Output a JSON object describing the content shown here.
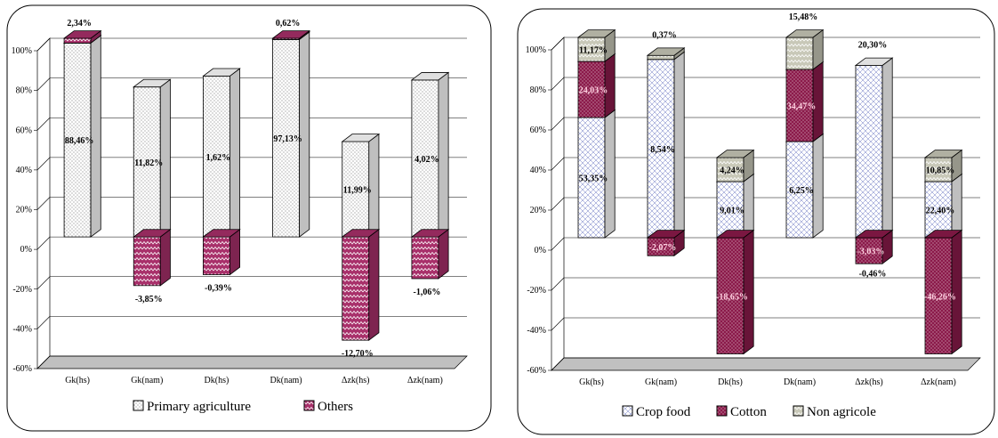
{
  "chart_data": [
    {
      "type": "bar",
      "stacked": true,
      "three_d": true,
      "categories": [
        "Gk(hs)",
        "Gk(nam)",
        "Dk(hs)",
        "Dk(nam)",
        "Δzk(hs)",
        "Δzk(nam)"
      ],
      "y_ticks": [
        "100%",
        "80%",
        "60%",
        "40%",
        "20%",
        "0%",
        "-20%",
        "-40%",
        "-60%"
      ],
      "ylim": [
        -60,
        100
      ],
      "grid": true,
      "legend_position": "bottom",
      "series": [
        {
          "name": "Primary agriculture",
          "color": "#ffffff",
          "pattern": "dots",
          "values": [
            97.6,
            75.5,
            81.0,
            99.4,
            48.0,
            79.0
          ],
          "labels": [
            "88,46%",
            "11,82%",
            "1,62%",
            "97,13%",
            "11,99%",
            "4,02%"
          ]
        },
        {
          "name": "Others",
          "color": "#a8306a",
          "pattern": "zigzag",
          "values": [
            2.4,
            -24.5,
            -19.0,
            0.6,
            -52.0,
            -21.0
          ],
          "labels": [
            "2,34%",
            "-3,85%",
            "-0,39%",
            "0,62%",
            "-12,70%",
            "-1,06%"
          ]
        }
      ]
    },
    {
      "type": "bar",
      "stacked": true,
      "three_d": true,
      "categories": [
        "Gk(hs)",
        "Gk(nam)",
        "Dk(hs)",
        "Dk(nam)",
        "Δzk(hs)",
        "Δzk(nam)"
      ],
      "y_ticks": [
        "100%",
        "80%",
        "60%",
        "40%",
        "20%",
        "0%",
        "-20%",
        "-40%",
        "-60%"
      ],
      "ylim": [
        -60,
        100
      ],
      "grid": true,
      "legend_position": "bottom",
      "series": [
        {
          "name": "Crop food",
          "color": "#ffffff",
          "pattern": "crosshatch",
          "values": [
            60.0,
            89.0,
            28.0,
            48.0,
            86.0,
            28.0
          ],
          "labels": [
            "53,35%",
            "8,54%",
            "9,01%",
            "6,25%",
            "",
            "22,40%"
          ]
        },
        {
          "name": "Cotton",
          "color": "#8b1a4a",
          "pattern": "dots",
          "values": [
            28.0,
            -9.0,
            -58.0,
            36.0,
            -13.0,
            -58.0
          ],
          "labels": [
            "24,03%",
            "-2,07%",
            "-18,65%",
            "34,47%",
            "-3,03%",
            "-46,26%"
          ]
        },
        {
          "name": "Non agricole",
          "color": "#c8c8b8",
          "pattern": "waves",
          "values": [
            12.0,
            2.0,
            12.0,
            16.0,
            0.0,
            12.0
          ],
          "labels": [
            "11,17%",
            "",
            "4,24%",
            "",
            "",
            "10,85%"
          ]
        }
      ],
      "outside_labels": [
        {
          "category": "Gk(nam)",
          "text": "0,37%",
          "pos": "above"
        },
        {
          "category": "Dk(nam)",
          "text": "15,48%",
          "pos": "above"
        },
        {
          "category": "Δzk(hs)",
          "text": "20,30%",
          "pos": "above"
        },
        {
          "category": "Δzk(hs)",
          "text": "-0,46%",
          "pos": "below"
        }
      ]
    }
  ]
}
